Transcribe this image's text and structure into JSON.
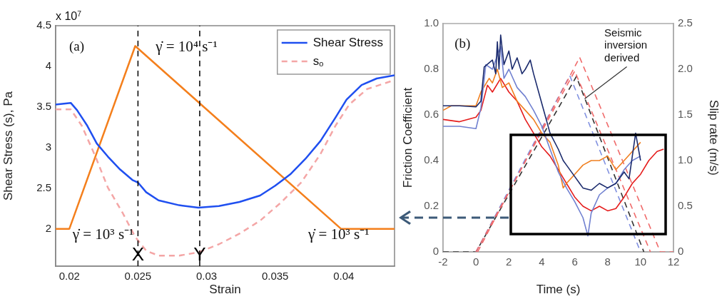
{
  "chart_data": [
    {
      "type": "line",
      "xlabel": "Strain",
      "ylabel": "Shear Stress (s), Pa",
      "xlim": [
        0.019,
        0.0437
      ],
      "ylim": [
        1.54,
        4.5
      ],
      "xticks": [
        0.02,
        0.025,
        0.03,
        0.035,
        0.04
      ],
      "yticks": [
        2,
        2.5,
        3,
        3.5,
        4,
        4.5
      ],
      "grid": false,
      "legend": "top right",
      "marker": "none",
      "line_style": "solid",
      "series": [
        {
          "name": "Shear Stress",
          "color": "#1f4ff0",
          "x": [
            0.019,
            0.0201,
            0.02056,
            0.0213,
            0.022,
            0.0228,
            0.0237,
            0.0246,
            0.025,
            0.0256,
            0.0265,
            0.028,
            0.0294,
            0.0309,
            0.0324,
            0.0339,
            0.035,
            0.0361,
            0.0372,
            0.0383,
            0.0394,
            0.0402,
            0.0413,
            0.0424,
            0.0437
          ],
          "values": [
            3.53,
            3.55,
            3.46,
            3.27,
            3.05,
            2.89,
            2.73,
            2.6,
            2.57,
            2.45,
            2.35,
            2.29,
            2.26,
            2.28,
            2.33,
            2.41,
            2.53,
            2.67,
            2.86,
            3.08,
            3.37,
            3.59,
            3.77,
            3.85,
            3.89
          ]
        },
        {
          "name": "s$_{o}$",
          "color": "#f4a6a6",
          "line_style": "dashed",
          "x": [
            0.019,
            0.0201,
            0.0209,
            0.0219,
            0.0228,
            0.0239,
            0.0248,
            0.0256,
            0.0265,
            0.028,
            0.0294,
            0.0309,
            0.0324,
            0.0339,
            0.0354,
            0.0369,
            0.0383,
            0.0394,
            0.0404,
            0.0417,
            0.0437
          ],
          "values": [
            3.47,
            3.47,
            3.27,
            2.89,
            2.51,
            2.19,
            1.9,
            1.73,
            1.67,
            1.67,
            1.71,
            1.81,
            1.94,
            2.1,
            2.32,
            2.57,
            2.92,
            3.27,
            3.53,
            3.72,
            3.83
          ]
        },
        {
          "color": "#f47f1c",
          "x": [
            0.019,
            0.02,
            0.0248,
            0.0398,
            0.0437
          ],
          "values": [
            2,
            2,
            4.25,
            2,
            2
          ]
        }
      ],
      "ref_lines": [
        {
          "axis": "x",
          "value": 0.025,
          "label": "X",
          "color": "#000000",
          "line_style": "dashed"
        },
        {
          "axis": "x",
          "value": 0.0295,
          "label": "Y",
          "color": "#000000",
          "line_style": "dashed"
        }
      ],
      "annotations": [
        "x 10$^{7}$",
        "(a)",
        "γ̇ = 10⁴ s⁻¹",
        "γ̇ = 10³ s⁻¹",
        "γ̇ = 10³ s⁻¹"
      ]
    },
    {
      "type": "line",
      "xlabel": "Time (s)",
      "ylabel": "Friction Coefficient",
      "y2label": "Slip rate (m/s)",
      "xlim": [
        -2,
        12
      ],
      "ylim": [
        0,
        1
      ],
      "y2lim": [
        0,
        2.5
      ],
      "xticks": [
        -2,
        0,
        2,
        4,
        6,
        8,
        10,
        12
      ],
      "yticks": [
        0,
        0.2,
        0.4,
        0.6,
        0.8,
        {
          "value": 1,
          "label": "1.0"
        }
      ],
      "y2ticks": [
        0,
        {
          "value": 0.5,
          "label": "0.5"
        },
        {
          "value": 1,
          "label": "1.0"
        },
        {
          "value": 1.5,
          "label": "1.5"
        },
        {
          "value": 2,
          "label": "2.0"
        },
        {
          "value": 2.5,
          "label": "2.5"
        }
      ],
      "grid": false,
      "marker": "none",
      "line_style": "solid",
      "series": [
        {
          "color": "#1a2a6c",
          "x": [
            -2,
            -1,
            0,
            0.3,
            0.5,
            1,
            1.2,
            1.3,
            1.4,
            1.5,
            1.7,
            2,
            2.2,
            2.5,
            2.8,
            3,
            3.3,
            3.5,
            4,
            4.5,
            5,
            5.3,
            5.5,
            6,
            6.3,
            6.5,
            7,
            7.5,
            8,
            8.5,
            9,
            9.3,
            9.5,
            9.7,
            10
          ],
          "values": [
            0.64,
            0.64,
            0.635,
            0.66,
            0.81,
            0.84,
            0.78,
            0.92,
            0.8,
            0.95,
            0.82,
            0.88,
            0.8,
            0.85,
            0.78,
            0.8,
            0.84,
            0.78,
            0.65,
            0.52,
            0.45,
            0.4,
            0.38,
            0.33,
            0.3,
            0.28,
            0.27,
            0.3,
            0.28,
            0.3,
            0.35,
            0.32,
            0.42,
            0.52,
            0.4
          ]
        },
        {
          "color": "#7080d0",
          "x": [
            -2,
            -1,
            0,
            0.3,
            0.6,
            1,
            1.3,
            1.5,
            1.7,
            2,
            2.5,
            3,
            3.5,
            4,
            4.5,
            5,
            5.5,
            6,
            6.5,
            6.8,
            7,
            7.5,
            8,
            8.5,
            9,
            9.5,
            10
          ],
          "values": [
            0.55,
            0.55,
            0.54,
            0.63,
            0.82,
            0.8,
            0.86,
            0.9,
            0.76,
            0.8,
            0.72,
            0.68,
            0.62,
            0.55,
            0.45,
            0.35,
            0.28,
            0.22,
            0.15,
            0.07,
            0.17,
            0.25,
            0.28,
            0.3,
            0.36,
            0.4,
            0.42
          ]
        },
        {
          "color": "#f07f20",
          "x": [
            -2,
            -1.5,
            0,
            0.3,
            0.8,
            1,
            1.3,
            1.6,
            2,
            2.5,
            3,
            3.5,
            4,
            4.5,
            5,
            5.3,
            5.5,
            6,
            6.5,
            7,
            7.5,
            8,
            8.5,
            9,
            9.5,
            10
          ],
          "values": [
            0.62,
            0.64,
            0.64,
            0.7,
            0.76,
            0.74,
            0.8,
            0.72,
            0.74,
            0.66,
            0.62,
            0.58,
            0.52,
            0.48,
            0.38,
            0.28,
            0.3,
            0.34,
            0.38,
            0.4,
            0.4,
            0.42,
            0.36,
            0.4,
            0.44,
            0.48
          ]
        },
        {
          "color": "#e51c1c",
          "x": [
            -2,
            -1,
            0,
            0.3,
            0.7,
            1,
            1.5,
            2,
            2.5,
            3,
            3.5,
            4,
            4.5,
            5,
            5.5,
            6,
            6.5,
            7,
            7.5,
            8,
            8.5,
            9,
            9.5,
            10,
            10.5,
            11,
            11.4
          ],
          "values": [
            0.58,
            0.57,
            0.59,
            0.62,
            0.73,
            0.7,
            0.76,
            0.7,
            0.66,
            0.58,
            0.52,
            0.46,
            0.42,
            0.36,
            0.3,
            0.24,
            0.2,
            0.18,
            0.2,
            0.18,
            0.19,
            0.24,
            0.3,
            0.34,
            0.4,
            0.44,
            0.45
          ]
        },
        {
          "color": "#f06a6a",
          "axis": "y2",
          "line_style": "dashed",
          "x": [
            0.1,
            6.3,
            11.2,
            12
          ],
          "values": [
            0,
            2.13,
            0,
            0
          ]
        },
        {
          "color": "#f06a6a",
          "axis": "y2",
          "line_style": "dashed",
          "x": [
            0,
            6,
            10.6
          ],
          "values": [
            0,
            1.98,
            0
          ]
        },
        {
          "color": "#8090e0",
          "axis": "y2",
          "line_style": "dashed",
          "x": [
            0,
            5.7,
            10
          ],
          "values": [
            0,
            1.93,
            0
          ]
        },
        {
          "color": "#333333",
          "axis": "y2",
          "line_style": "dashed",
          "x": [
            -2,
            0,
            6.1,
            10.2
          ],
          "values": [
            0,
            0,
            1.92,
            0
          ]
        }
      ],
      "annotations": [
        "(b)",
        {
          "text": "Seismic inversion derived",
          "x": 6.6,
          "y": 0.67
        }
      ]
    }
  ]
}
